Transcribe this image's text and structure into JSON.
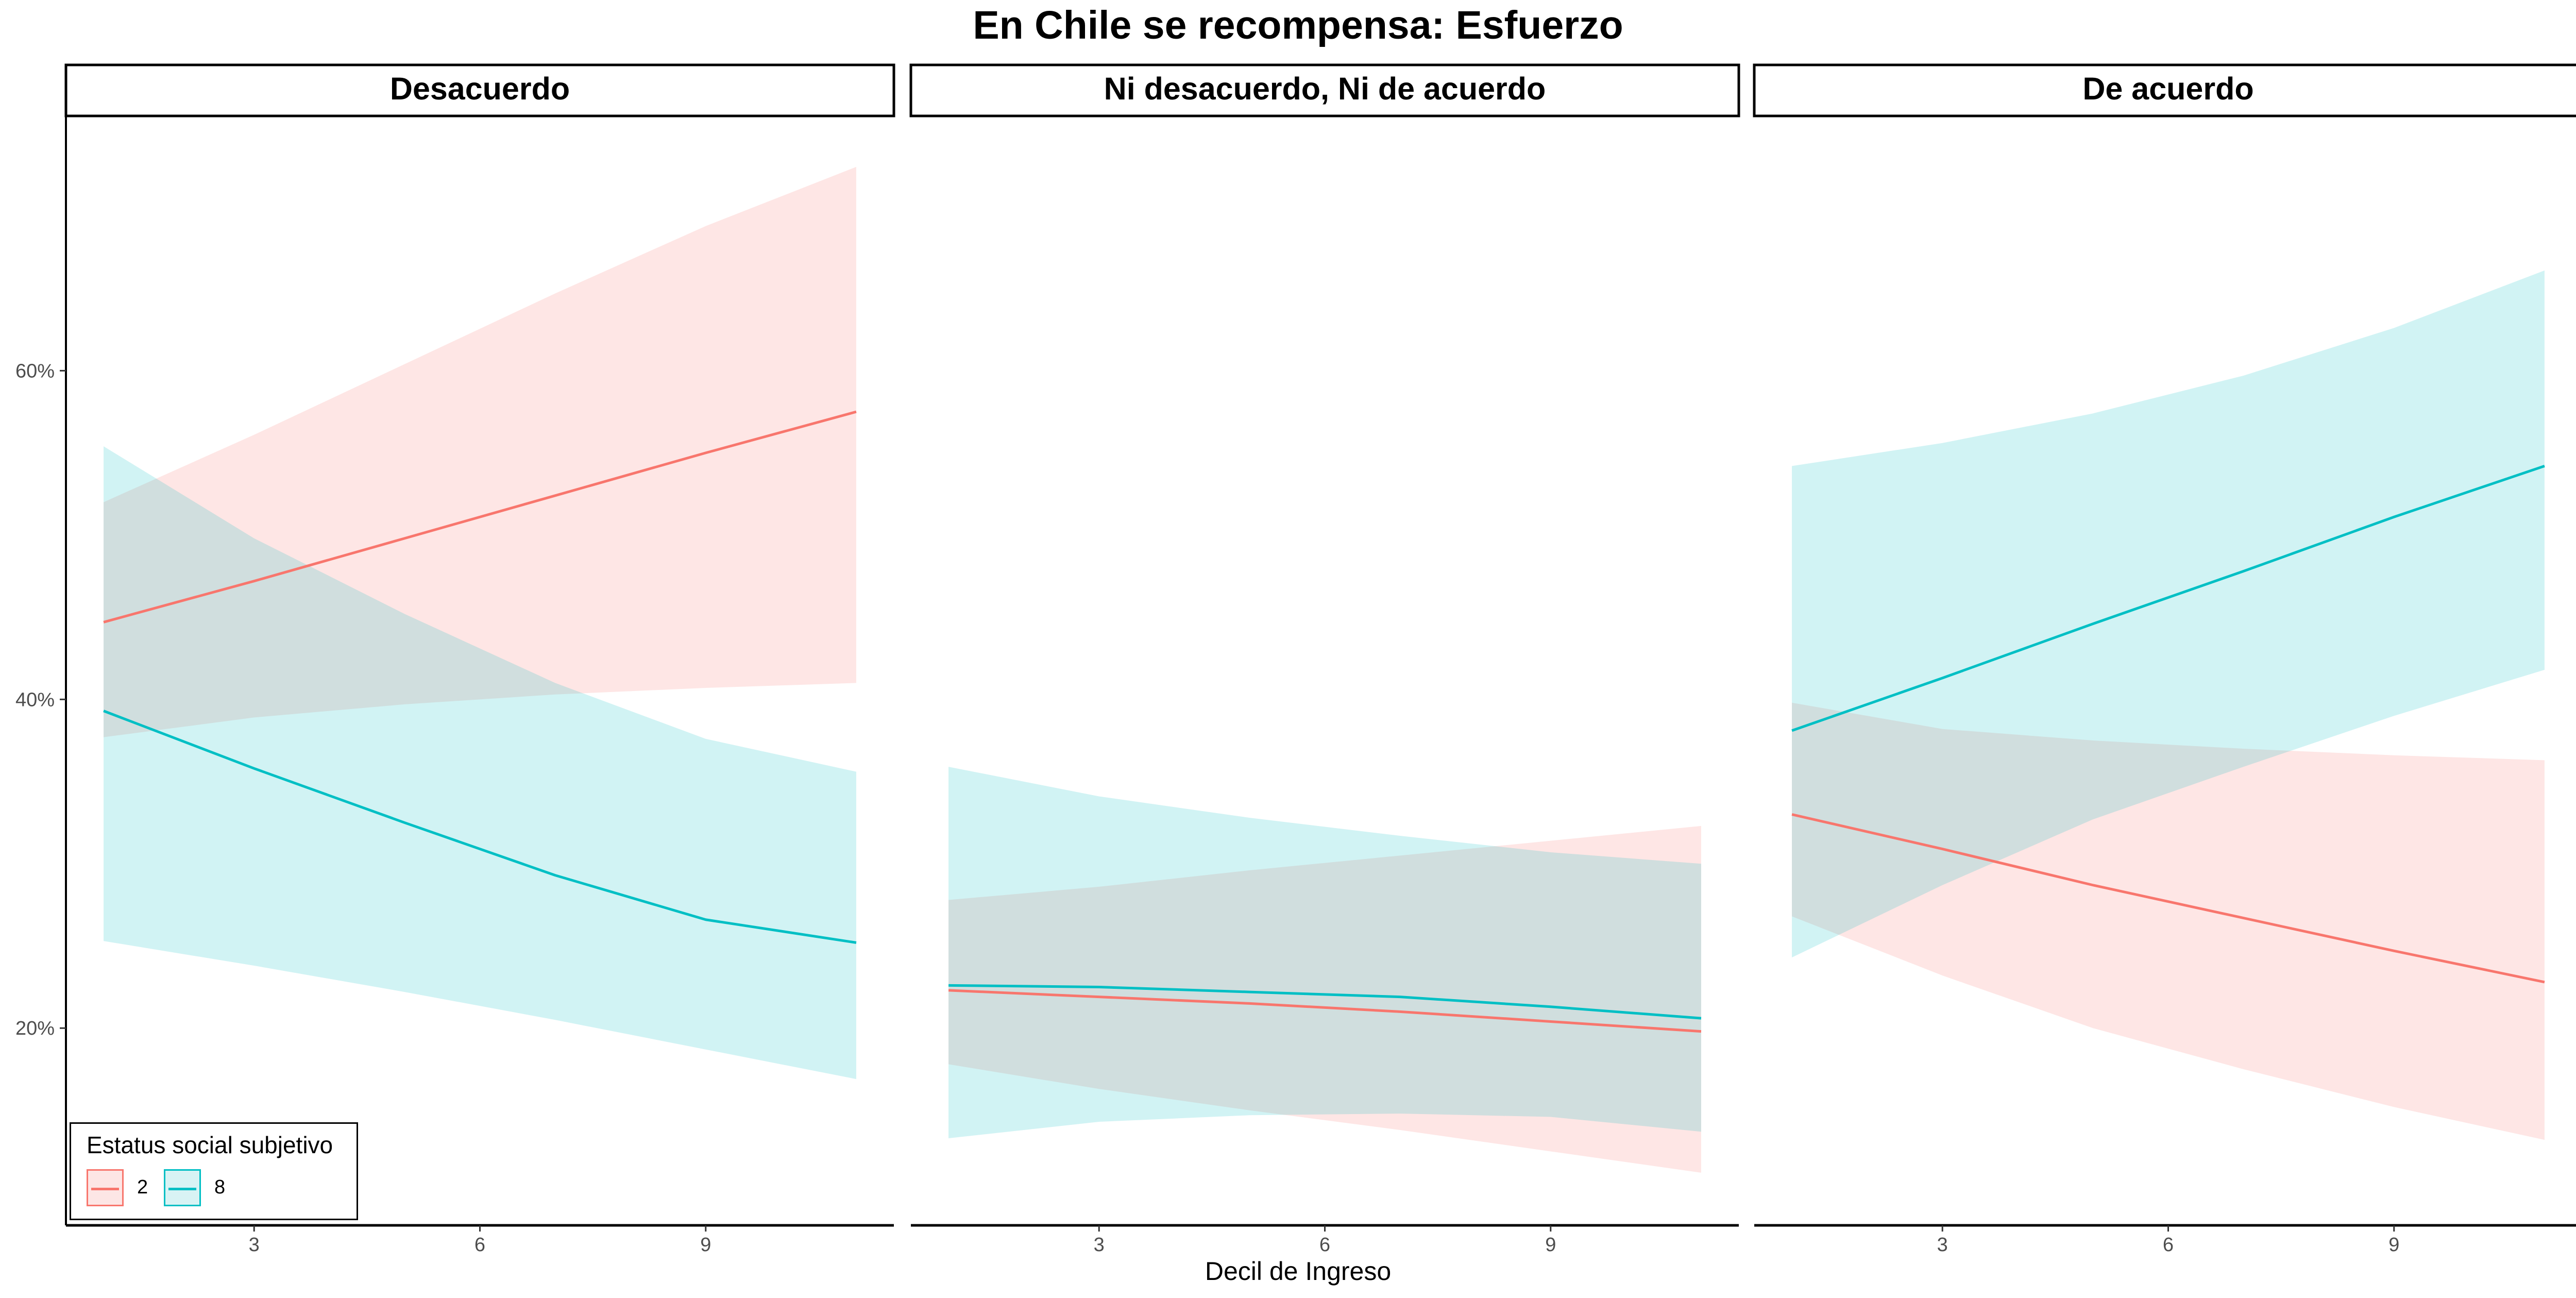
{
  "title": "En Chile se recompensa: Esfuerzo",
  "xlabel": "Decil de Ingreso",
  "legend": {
    "title": "Estatus social subjetivo",
    "items": [
      {
        "label": "2",
        "color": "#F8766D",
        "fill": "#FDE6E5"
      },
      {
        "label": "8",
        "color": "#00BFC4",
        "fill": "#D8F3F4"
      }
    ]
  },
  "chart_data": {
    "type": "line",
    "x_ticks": [
      3,
      6,
      9
    ],
    "x_range": [
      0.5,
      11.5
    ],
    "y_ticks": [
      0.2,
      0.4,
      0.6
    ],
    "y_tick_labels": [
      "20%",
      "40%",
      "60%"
    ],
    "y_range": [
      0.08,
      0.755
    ],
    "legend_position": "bottom-left",
    "grid": false,
    "panels": [
      {
        "title": "Desacuerdo",
        "series": [
          {
            "name": "2",
            "color": "#F8766D",
            "fill": "#FDE6E5",
            "x": [
              1,
              3,
              5,
              7,
              9,
              11
            ],
            "y": [
              0.447,
              0.472,
              0.498,
              0.524,
              0.55,
              0.575
            ],
            "lower": [
              0.377,
              0.389,
              0.397,
              0.403,
              0.407,
              0.41
            ],
            "upper": [
              0.52,
              0.561,
              0.604,
              0.647,
              0.688,
              0.724
            ]
          },
          {
            "name": "8",
            "color": "#00BFC4",
            "fill": "#D8F3F4",
            "x": [
              1,
              3,
              5,
              7,
              9,
              11
            ],
            "y": [
              0.393,
              0.358,
              0.325,
              0.293,
              0.266,
              0.252
            ],
            "lower": [
              0.253,
              0.238,
              0.222,
              0.205,
              0.187,
              0.169
            ],
            "upper": [
              0.554,
              0.498,
              0.452,
              0.41,
              0.376,
              0.356
            ]
          }
        ]
      },
      {
        "title": "Ni desacuerdo, Ni de acuerdo",
        "series": [
          {
            "name": "2",
            "color": "#F8766D",
            "fill": "#FDE6E5",
            "x": [
              1,
              3,
              5,
              7,
              9,
              11
            ],
            "y": [
              0.223,
              0.219,
              0.215,
              0.21,
              0.204,
              0.198
            ],
            "lower": [
              0.178,
              0.163,
              0.15,
              0.138,
              0.125,
              0.112
            ],
            "upper": [
              0.278,
              0.286,
              0.296,
              0.305,
              0.314,
              0.323
            ]
          },
          {
            "name": "8",
            "color": "#00BFC4",
            "fill": "#D8F3F4",
            "x": [
              1,
              3,
              5,
              7,
              9,
              11
            ],
            "y": [
              0.226,
              0.225,
              0.222,
              0.219,
              0.213,
              0.206
            ],
            "lower": [
              0.133,
              0.143,
              0.147,
              0.148,
              0.146,
              0.137
            ],
            "upper": [
              0.359,
              0.341,
              0.328,
              0.317,
              0.307,
              0.3
            ]
          }
        ]
      },
      {
        "title": "De acuerdo",
        "series": [
          {
            "name": "2",
            "color": "#F8766D",
            "fill": "#FDE6E5",
            "x": [
              1,
              3,
              5,
              7,
              9,
              11
            ],
            "y": [
              0.33,
              0.309,
              0.287,
              0.267,
              0.247,
              0.228
            ],
            "lower": [
              0.268,
              0.232,
              0.2,
              0.175,
              0.152,
              0.132
            ],
            "upper": [
              0.398,
              0.382,
              0.375,
              0.37,
              0.366,
              0.363
            ]
          },
          {
            "name": "8",
            "color": "#00BFC4",
            "fill": "#D8F3F4",
            "x": [
              1,
              3,
              5,
              7,
              9,
              11
            ],
            "y": [
              0.381,
              0.413,
              0.446,
              0.478,
              0.511,
              0.542
            ],
            "lower": [
              0.243,
              0.287,
              0.327,
              0.359,
              0.39,
              0.418
            ],
            "upper": [
              0.542,
              0.556,
              0.574,
              0.597,
              0.626,
              0.661
            ]
          }
        ]
      }
    ]
  }
}
